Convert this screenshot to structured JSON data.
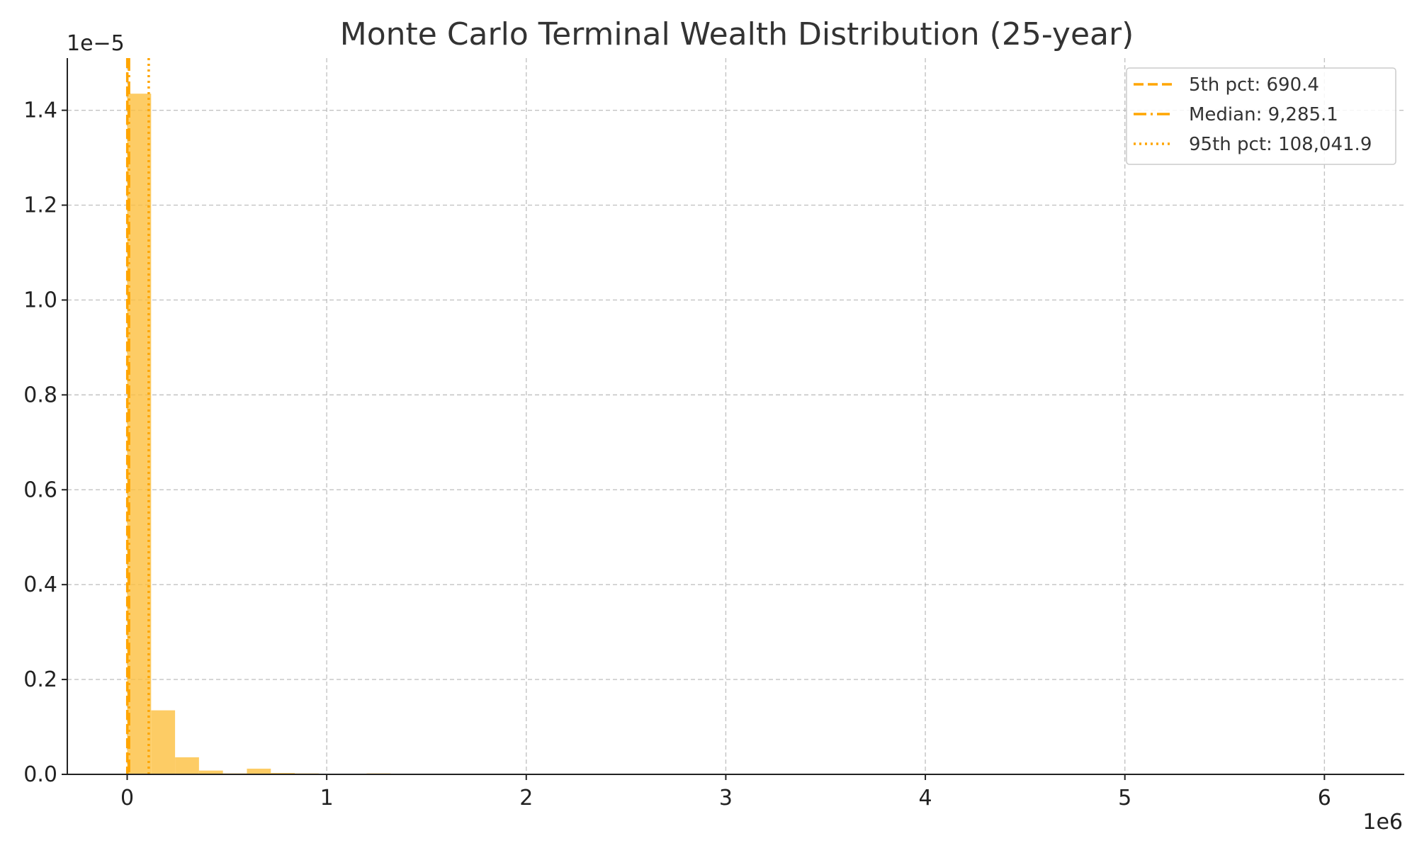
{
  "chart_data": {
    "type": "bar",
    "title": "Monte Carlo Terminal Wealth Distribution (25-year)",
    "xlabel": "",
    "ylabel": "",
    "x_offset_label": "1e6",
    "y_offset_label": "1e−5",
    "xlim": [
      -300000,
      6400000
    ],
    "ylim": [
      0,
      1.51
    ],
    "x_ticks": [
      0,
      1,
      2,
      3,
      4,
      5,
      6
    ],
    "y_ticks": [
      "0.0",
      "0.2",
      "0.4",
      "0.6",
      "0.8",
      "1.0",
      "1.2",
      "1.4"
    ],
    "grid": true,
    "legend_position": "top-right",
    "bar_color": "#fdbf3f",
    "line_color": "#ffa500",
    "bin_width": 120000,
    "bins": [
      {
        "x0": 0,
        "value": 1.435
      },
      {
        "x0": 120000,
        "value": 0.135
      },
      {
        "x0": 240000,
        "value": 0.036
      },
      {
        "x0": 360000,
        "value": 0.008
      },
      {
        "x0": 480000,
        "value": 0.002
      },
      {
        "x0": 600000,
        "value": 0.012
      },
      {
        "x0": 720000,
        "value": 0.003
      },
      {
        "x0": 840000,
        "value": 0.002
      },
      {
        "x0": 960000,
        "value": 0.001
      },
      {
        "x0": 1200000,
        "value": 0.002
      },
      {
        "x0": 1560000,
        "value": 0.001
      },
      {
        "x0": 2400000,
        "value": 0.001
      },
      {
        "x0": 6000000,
        "value": 0.001
      }
    ],
    "reference_lines": [
      {
        "name": "5th pct",
        "value": 690.4,
        "label": "5th pct: 690.4",
        "style": "dashed"
      },
      {
        "name": "Median",
        "value": 9285.1,
        "label": "Median: 9,285.1",
        "style": "dashdot"
      },
      {
        "name": "95th pct",
        "value": 108041.9,
        "label": "95th pct: 108,041.9",
        "style": "dotted"
      }
    ]
  }
}
